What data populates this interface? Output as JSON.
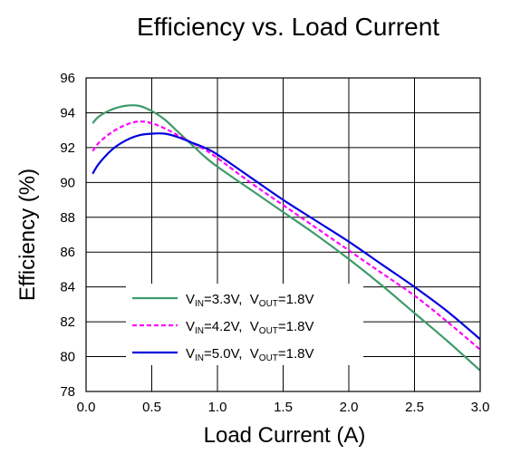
{
  "chart_data": {
    "type": "line",
    "title": "Efficiency vs. Load Current",
    "xlabel": "Load Current (A)",
    "ylabel": "Efficiency (%)",
    "xlim": [
      0,
      3.0
    ],
    "ylim": [
      78,
      96
    ],
    "xticks": [
      "0.0",
      "0.5",
      "1.0",
      "1.5",
      "2.0",
      "2.5",
      "3.0"
    ],
    "yticks": [
      "78",
      "80",
      "82",
      "84",
      "86",
      "88",
      "90",
      "92",
      "94",
      "96"
    ],
    "grid": true,
    "legend_position": "bottom-left",
    "series": [
      {
        "name": "VIN=3.3V, VOUT=1.8V",
        "vin_label": "V",
        "vin_sub": "IN",
        "vin_value": "=3.3V,",
        "vout_label": "V",
        "vout_sub": "OUT",
        "vout_value": "=1.8V",
        "color": "#3f9a6a",
        "dash": "solid",
        "x": [
          0.05,
          0.1,
          0.2,
          0.3,
          0.4,
          0.5,
          0.6,
          0.7,
          0.8,
          0.9,
          1.0,
          1.25,
          1.5,
          1.75,
          2.0,
          2.25,
          2.5,
          2.75,
          3.0
        ],
        "y": [
          93.4,
          93.8,
          94.2,
          94.4,
          94.4,
          94.1,
          93.6,
          92.9,
          92.2,
          91.5,
          90.9,
          89.6,
          88.3,
          87.0,
          85.6,
          84.1,
          82.5,
          80.9,
          79.2
        ]
      },
      {
        "name": "VIN=4.2V, VOUT=1.8V",
        "vin_label": "V",
        "vin_sub": "IN",
        "vin_value": "=4.2V,",
        "vout_label": "V",
        "vout_sub": "OUT",
        "vout_value": "=1.8V",
        "color": "#ff00ff",
        "dash": "dashed",
        "x": [
          0.05,
          0.1,
          0.2,
          0.3,
          0.4,
          0.5,
          0.6,
          0.7,
          0.8,
          0.9,
          1.0,
          1.25,
          1.5,
          1.75,
          2.0,
          2.25,
          2.5,
          2.75,
          3.0
        ],
        "y": [
          91.8,
          92.3,
          92.9,
          93.3,
          93.5,
          93.4,
          93.1,
          92.7,
          92.3,
          91.9,
          91.4,
          90.0,
          88.7,
          87.4,
          86.1,
          84.8,
          83.5,
          82.0,
          80.4
        ]
      },
      {
        "name": "VIN=5.0V, VOUT=1.8V",
        "vin_label": "V",
        "vin_sub": "IN",
        "vin_value": "=5.0V,",
        "vout_label": "V",
        "vout_sub": "OUT",
        "vout_value": "=1.8V",
        "color": "#0000dd",
        "dash": "solid",
        "x": [
          0.05,
          0.1,
          0.2,
          0.3,
          0.4,
          0.5,
          0.6,
          0.7,
          0.8,
          0.9,
          1.0,
          1.25,
          1.5,
          1.75,
          2.0,
          2.25,
          2.5,
          2.75,
          3.0
        ],
        "y": [
          90.5,
          91.1,
          91.9,
          92.4,
          92.7,
          92.8,
          92.8,
          92.6,
          92.3,
          92.0,
          91.6,
          90.3,
          89.0,
          87.8,
          86.6,
          85.3,
          84.0,
          82.6,
          81.0
        ]
      }
    ]
  }
}
